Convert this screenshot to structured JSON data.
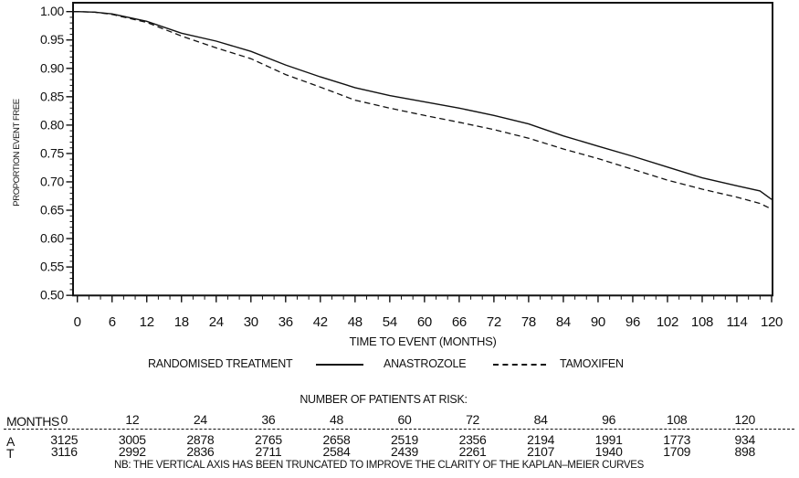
{
  "chart_data": {
    "type": "line",
    "title": "",
    "xlabel": "TIME TO EVENT (MONTHS)",
    "ylabel": "PROPORTION EVENT FREE",
    "xlim": [
      0,
      120
    ],
    "ylim": [
      0.5,
      1.0
    ],
    "grid": false,
    "x_ticks": [
      "0",
      "6",
      "12",
      "18",
      "24",
      "30",
      "36",
      "42",
      "48",
      "54",
      "60",
      "66",
      "72",
      "78",
      "84",
      "90",
      "96",
      "102",
      "108",
      "114",
      "120"
    ],
    "x_minor_tick_step": 2,
    "y_ticks": [
      "1.00",
      "0.95",
      "0.90",
      "0.85",
      "0.80",
      "0.75",
      "0.70",
      "0.65",
      "0.60",
      "0.55",
      "0.50"
    ],
    "y_minor_tick_step": 0.01,
    "legend": {
      "position": "below",
      "title": "RANDOMISED TREATMENT",
      "entries": [
        {
          "name": "ANASTROZOLE",
          "style": "solid",
          "color": "#111111"
        },
        {
          "name": "TAMOXIFEN",
          "style": "dashed",
          "color": "#111111"
        }
      ]
    },
    "series": [
      {
        "name": "ANASTROZOLE",
        "style": "solid",
        "x": [
          0,
          3,
          6,
          12,
          18,
          24,
          30,
          36,
          42,
          48,
          54,
          60,
          66,
          72,
          78,
          84,
          90,
          96,
          102,
          108,
          114,
          118,
          120
        ],
        "y": [
          1.0,
          0.999,
          0.996,
          0.983,
          0.962,
          0.948,
          0.93,
          0.906,
          0.885,
          0.866,
          0.852,
          0.841,
          0.83,
          0.817,
          0.802,
          0.781,
          0.763,
          0.745,
          0.726,
          0.707,
          0.693,
          0.684,
          0.669
        ]
      },
      {
        "name": "TAMOXIFEN",
        "style": "dashed",
        "x": [
          0,
          3,
          6,
          12,
          18,
          24,
          30,
          36,
          42,
          48,
          54,
          60,
          66,
          72,
          78,
          84,
          90,
          96,
          102,
          108,
          114,
          118,
          120
        ],
        "y": [
          1.0,
          0.999,
          0.995,
          0.981,
          0.957,
          0.936,
          0.917,
          0.889,
          0.867,
          0.844,
          0.83,
          0.817,
          0.805,
          0.792,
          0.777,
          0.758,
          0.741,
          0.722,
          0.703,
          0.687,
          0.673,
          0.662,
          0.652
        ]
      }
    ]
  },
  "risk_table": {
    "title": "NUMBER OF PATIENTS AT RISK:",
    "header_label": "MONTHS",
    "columns": [
      "0",
      "12",
      "24",
      "36",
      "48",
      "60",
      "72",
      "84",
      "96",
      "108",
      "120"
    ],
    "rows": [
      {
        "label": "A",
        "values": [
          "3125",
          "3005",
          "2878",
          "2765",
          "2658",
          "2519",
          "2356",
          "2194",
          "1991",
          "1773",
          "934"
        ]
      },
      {
        "label": "T",
        "values": [
          "3116",
          "2992",
          "2836",
          "2711",
          "2584",
          "2439",
          "2261",
          "2107",
          "1940",
          "1709",
          "898"
        ]
      }
    ]
  },
  "note": "NB: THE VERTICAL AXIS HAS BEEN TRUNCATED TO IMPROVE THE CLARITY OF THE KAPLAN–MEIER CURVES"
}
